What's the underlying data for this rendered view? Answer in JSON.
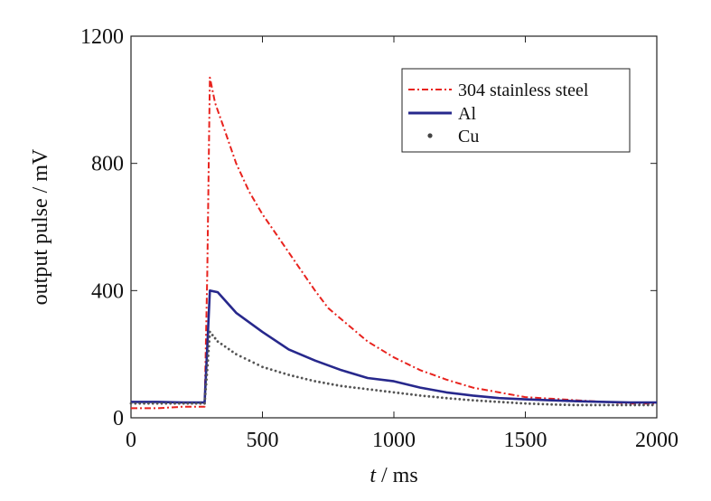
{
  "chart_data": {
    "type": "line",
    "title": "",
    "xlabel_var": "t",
    "xlabel_unit": " / ms",
    "ylabel": "output pulse / mV",
    "xlim": [
      0,
      2000
    ],
    "ylim": [
      0,
      1200
    ],
    "xticks": [
      "0",
      "500",
      "1000",
      "1500",
      "2000"
    ],
    "yticks": [
      "0",
      "400",
      "800",
      "1200"
    ],
    "grid": false,
    "legend_position": "top-right",
    "series": [
      {
        "name": "304 stainless steel",
        "color": "#e8231e",
        "style": "dash-dot",
        "x": [
          0,
          100,
          200,
          280,
          290,
          300,
          320,
          350,
          400,
          450,
          500,
          550,
          600,
          650,
          700,
          750,
          800,
          900,
          1000,
          1100,
          1200,
          1300,
          1400,
          1500,
          1600,
          1700,
          1800,
          1900,
          2000
        ],
        "y": [
          30,
          30,
          35,
          35,
          450,
          1070,
          990,
          920,
          800,
          710,
          640,
          580,
          520,
          460,
          400,
          345,
          310,
          240,
          190,
          150,
          120,
          95,
          80,
          65,
          60,
          55,
          50,
          45,
          45
        ]
      },
      {
        "name": "Al",
        "color": "#27288c",
        "style": "solid",
        "x": [
          0,
          100,
          200,
          280,
          290,
          300,
          330,
          400,
          500,
          600,
          700,
          800,
          900,
          1000,
          1100,
          1200,
          1300,
          1400,
          1500,
          1600,
          1700,
          1800,
          1900,
          2000
        ],
        "y": [
          50,
          50,
          48,
          48,
          220,
          400,
          395,
          330,
          270,
          215,
          180,
          150,
          125,
          115,
          95,
          80,
          70,
          62,
          58,
          55,
          52,
          50,
          48,
          48
        ]
      },
      {
        "name": "Cu",
        "color": "#555555",
        "style": "dotted",
        "x": [
          0,
          100,
          200,
          280,
          290,
          300,
          330,
          400,
          500,
          600,
          700,
          800,
          900,
          1000,
          1100,
          1200,
          1300,
          1400,
          1500,
          1600,
          1700,
          1800,
          1900,
          2000
        ],
        "y": [
          45,
          45,
          45,
          45,
          150,
          270,
          240,
          200,
          160,
          135,
          115,
          100,
          90,
          80,
          70,
          62,
          55,
          50,
          45,
          42,
          40,
          40,
          40,
          40
        ]
      }
    ]
  }
}
